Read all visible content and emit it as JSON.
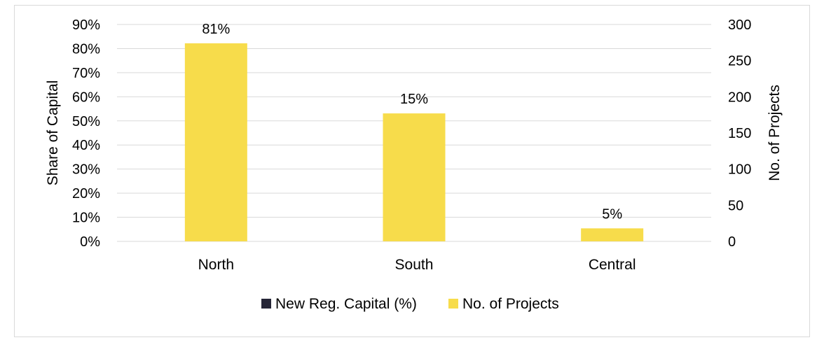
{
  "chart_data": {
    "type": "bar",
    "categories": [
      "North",
      "South",
      "Central"
    ],
    "series": [
      {
        "name": "New Reg. Capital (%)",
        "axis": "left",
        "values": [
          0.81,
          0.15,
          0.05
        ],
        "color": "#262637"
      },
      {
        "name": "No. of Projects",
        "axis": "right",
        "values": [
          274,
          177,
          18
        ],
        "color": "#f7dc4b"
      }
    ],
    "data_labels": [
      "81%",
      "15%",
      "5%"
    ],
    "ylabel": "Share of Capital",
    "ylabel_right": "No. of Projects",
    "ylim": [
      0,
      0.9
    ],
    "ylim_right": [
      0,
      300
    ],
    "yticks": [
      "0%",
      "10%",
      "20%",
      "30%",
      "40%",
      "50%",
      "60%",
      "70%",
      "80%",
      "90%"
    ],
    "yticks_right": [
      "0",
      "50",
      "100",
      "150",
      "200",
      "250",
      "300"
    ],
    "grid": true,
    "legend": "bottom",
    "grid_color": "#d9d9d9"
  }
}
